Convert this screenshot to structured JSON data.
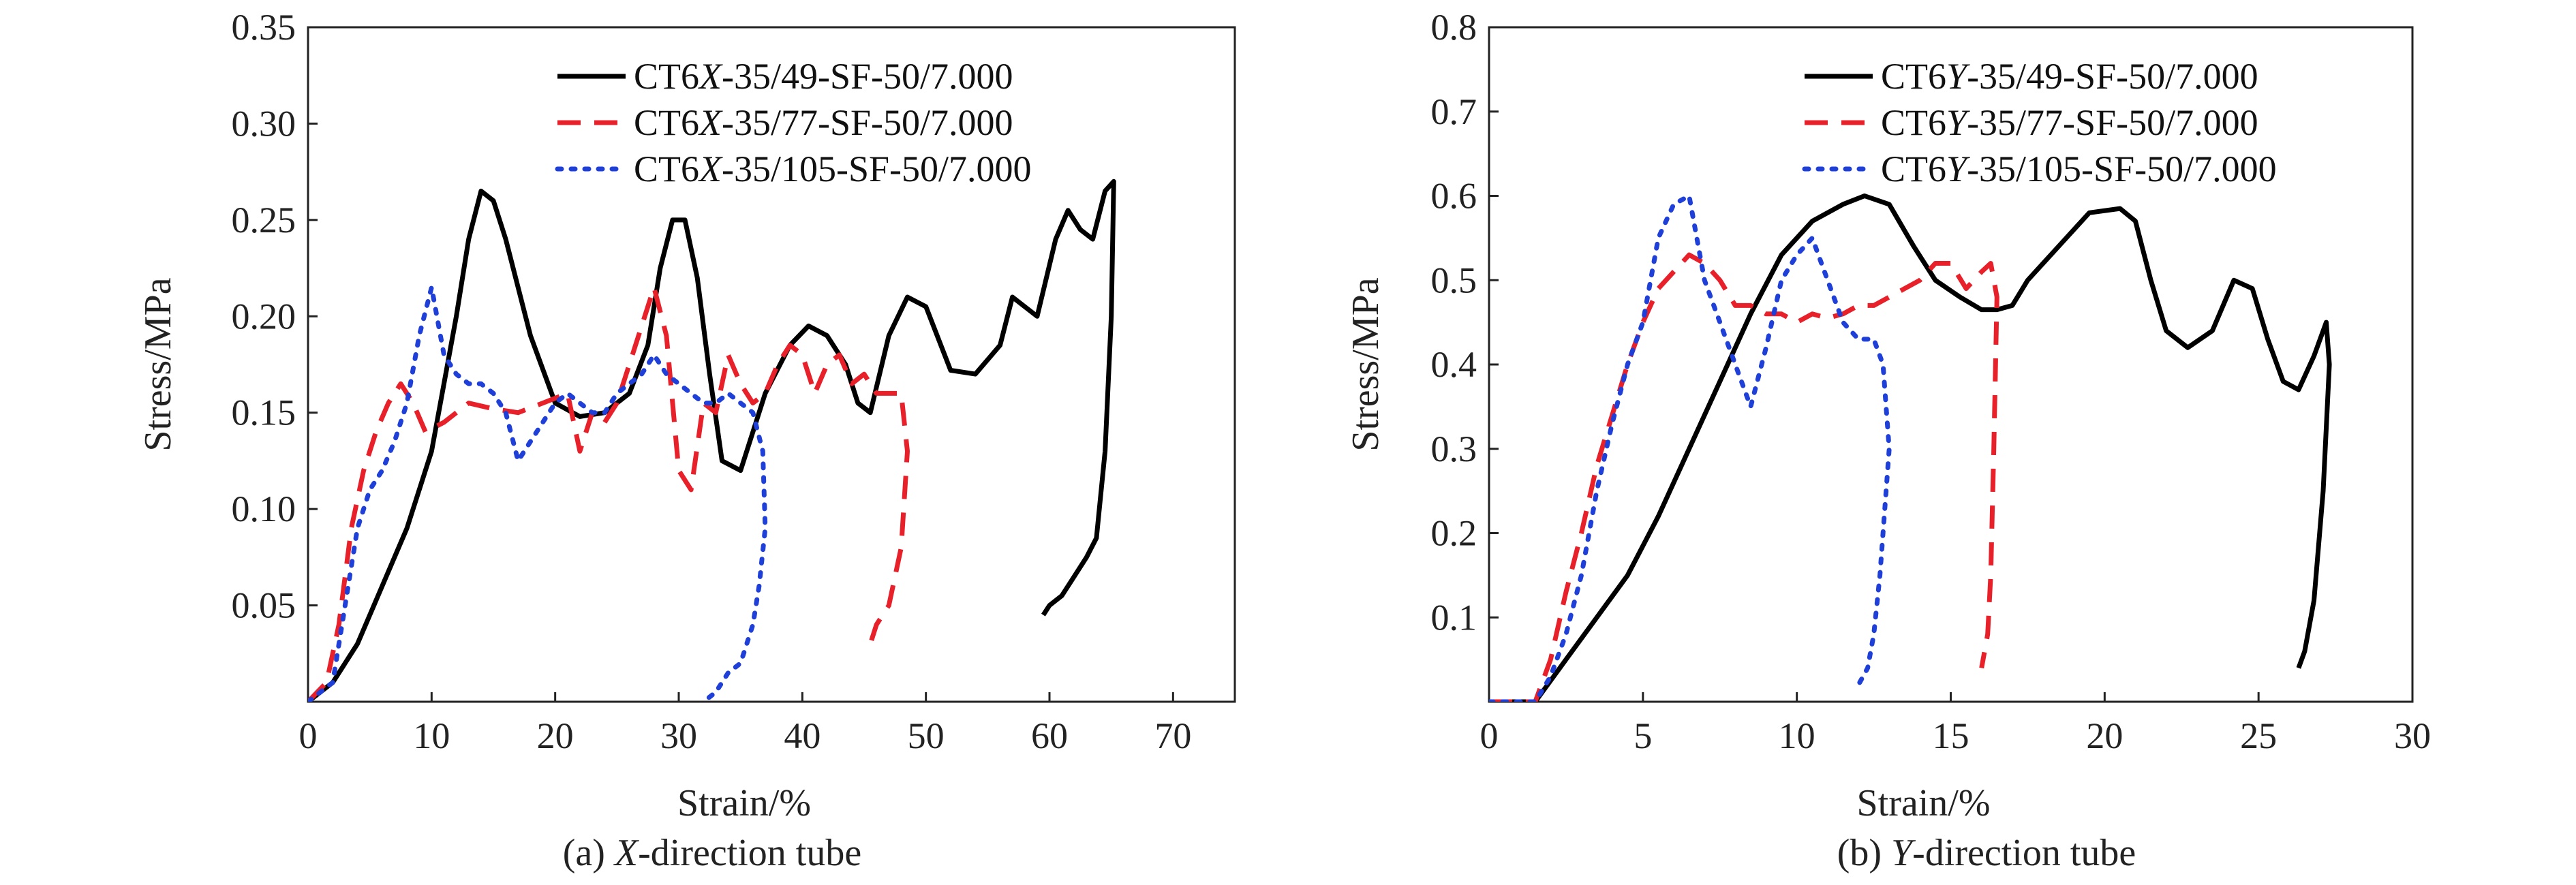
{
  "chart_data": [
    {
      "type": "line",
      "caption_prefix": "(a) ",
      "caption_italic": "X",
      "caption_suffix": "-direction tube",
      "xlabel": "Strain/%",
      "ylabel": "Stress/MPa",
      "xlim": [
        0,
        75
      ],
      "ylim": [
        0,
        0.35
      ],
      "xticks": [
        "0",
        "10",
        "20",
        "30",
        "40",
        "50",
        "60",
        "70"
      ],
      "yticks": [
        "0.05",
        "0.10",
        "0.15",
        "0.20",
        "0.25",
        "0.30",
        "0.35"
      ],
      "legend_position": "top-right",
      "series": [
        {
          "name": "CT6X-35/49-SF-50/7.000",
          "legend_prefix": "CT6",
          "legend_italic": "X",
          "legend_suffix": "-35/49-SF-50/7.000",
          "color": "#000000",
          "style": "solid",
          "x": [
            0,
            2,
            4,
            6,
            8,
            10,
            12,
            13,
            14,
            15,
            16,
            18,
            20,
            22,
            24,
            26,
            27.5,
            28.5,
            29.5,
            30.5,
            31.5,
            32.5,
            33.5,
            35,
            37,
            39,
            40.5,
            42,
            43.5,
            44.5,
            45.5,
            47,
            48.5,
            50,
            52,
            54,
            56,
            57,
            58,
            59,
            60.5,
            61.5,
            62.5,
            63.5,
            64.5,
            65.2,
            65,
            64.5,
            63.8,
            63,
            62,
            61,
            60,
            59.5
          ],
          "y": [
            0,
            0.01,
            0.03,
            0.06,
            0.09,
            0.13,
            0.2,
            0.24,
            0.265,
            0.26,
            0.24,
            0.19,
            0.155,
            0.148,
            0.15,
            0.16,
            0.185,
            0.225,
            0.25,
            0.25,
            0.22,
            0.17,
            0.125,
            0.12,
            0.16,
            0.185,
            0.195,
            0.19,
            0.175,
            0.155,
            0.15,
            0.19,
            0.21,
            0.205,
            0.172,
            0.17,
            0.185,
            0.21,
            0.205,
            0.2,
            0.24,
            0.255,
            0.245,
            0.24,
            0.265,
            0.27,
            0.2,
            0.13,
            0.085,
            0.075,
            0.065,
            0.055,
            0.05,
            0.045
          ]
        },
        {
          "name": "CT6X-35/77-SF-50/7.000",
          "legend_prefix": "CT6",
          "legend_italic": "X",
          "legend_suffix": "-35/77-SF-50/7.000",
          "color": "#e8202a",
          "style": "dashed",
          "x": [
            0,
            1.5,
            2.5,
            3.5,
            4.5,
            5.5,
            6.5,
            7.5,
            8.5,
            9.5,
            11,
            13,
            15,
            17,
            19,
            21,
            22,
            23,
            24,
            25,
            26,
            27,
            28,
            29,
            30,
            31,
            32,
            33,
            34,
            35,
            36,
            37,
            38,
            39,
            40,
            41,
            42,
            43,
            44,
            45,
            46,
            47,
            48,
            48.5,
            48,
            47,
            46,
            45.5
          ],
          "y": [
            0,
            0.01,
            0.04,
            0.09,
            0.12,
            0.14,
            0.155,
            0.165,
            0.155,
            0.14,
            0.145,
            0.155,
            0.152,
            0.15,
            0.155,
            0.16,
            0.13,
            0.15,
            0.145,
            0.155,
            0.175,
            0.195,
            0.215,
            0.19,
            0.12,
            0.11,
            0.155,
            0.15,
            0.18,
            0.165,
            0.155,
            0.16,
            0.175,
            0.185,
            0.18,
            0.16,
            0.175,
            0.18,
            0.165,
            0.17,
            0.16,
            0.16,
            0.16,
            0.13,
            0.08,
            0.05,
            0.04,
            0.03
          ]
        },
        {
          "name": "CT6X-35/105-SF-50/7.000",
          "legend_prefix": "CT6",
          "legend_italic": "X",
          "legend_suffix": "-35/105-SF-50/7.000",
          "color": "#1f3fd9",
          "style": "dotted",
          "x": [
            0,
            2,
            3,
            4,
            5,
            6,
            7,
            8,
            9,
            10,
            11,
            12,
            13,
            14,
            15,
            16,
            17,
            18,
            19,
            20,
            21,
            22,
            23,
            24,
            25,
            26,
            27,
            28,
            29,
            30,
            31,
            32,
            33,
            34,
            35,
            36,
            36.8,
            37,
            36.5,
            36,
            35,
            34,
            33,
            32
          ],
          "y": [
            0,
            0.01,
            0.05,
            0.09,
            0.11,
            0.12,
            0.135,
            0.155,
            0.19,
            0.215,
            0.18,
            0.17,
            0.165,
            0.165,
            0.16,
            0.15,
            0.125,
            0.135,
            0.145,
            0.155,
            0.16,
            0.155,
            0.15,
            0.15,
            0.16,
            0.165,
            0.17,
            0.18,
            0.17,
            0.165,
            0.16,
            0.155,
            0.155,
            0.16,
            0.155,
            0.15,
            0.13,
            0.09,
            0.06,
            0.04,
            0.02,
            0.015,
            0.005,
            0
          ]
        }
      ]
    },
    {
      "type": "line",
      "caption_prefix": "(b) ",
      "caption_italic": "Y",
      "caption_suffix": "-direction tube",
      "xlabel": "Strain/%",
      "ylabel": "Stress/MPa",
      "xlim": [
        0,
        30
      ],
      "ylim": [
        0,
        0.8
      ],
      "xticks": [
        "0",
        "5",
        "10",
        "15",
        "20",
        "25",
        "30"
      ],
      "yticks": [
        "0.1",
        "0.2",
        "0.3",
        "0.4",
        "0.5",
        "0.6",
        "0.7",
        "0.8"
      ],
      "legend_position": "top-right",
      "series": [
        {
          "name": "CT6Y-35/49-SF-50/7.000",
          "legend_prefix": "CT6",
          "legend_italic": "Y",
          "legend_suffix": "-35/49-SF-50/7.000",
          "color": "#000000",
          "style": "solid",
          "x": [
            0,
            1.5,
            2.5,
            3.5,
            4.5,
            5.5,
            6.5,
            7.5,
            8.5,
            9.5,
            10.5,
            11.5,
            12.2,
            13,
            13.8,
            14.5,
            15.3,
            16,
            16.5,
            17,
            17.5,
            18.5,
            19.5,
            20.5,
            21,
            21.5,
            22,
            22.7,
            23.5,
            24.2,
            24.8,
            25.3,
            25.8,
            26.3,
            26.8,
            27.2,
            27.3,
            27.1,
            26.8,
            26.5,
            26.3
          ],
          "y": [
            0,
            0,
            0.05,
            0.1,
            0.15,
            0.22,
            0.3,
            0.38,
            0.46,
            0.53,
            0.57,
            0.59,
            0.6,
            0.59,
            0.54,
            0.5,
            0.48,
            0.465,
            0.465,
            0.47,
            0.5,
            0.54,
            0.58,
            0.585,
            0.57,
            0.5,
            0.44,
            0.42,
            0.44,
            0.5,
            0.49,
            0.43,
            0.38,
            0.37,
            0.41,
            0.45,
            0.4,
            0.25,
            0.12,
            0.06,
            0.04
          ]
        },
        {
          "name": "CT6Y-35/77-SF-50/7.000",
          "legend_prefix": "CT6",
          "legend_italic": "Y",
          "legend_suffix": "-35/77-SF-50/7.000",
          "color": "#e8202a",
          "style": "dashed",
          "x": [
            0,
            1.5,
            2,
            2.5,
            3,
            3.5,
            4,
            4.5,
            5,
            5.5,
            6,
            6.5,
            7,
            7.5,
            8,
            8.5,
            9,
            9.5,
            10,
            10.5,
            11,
            11.5,
            12,
            12.5,
            13,
            13.5,
            14,
            14.5,
            15,
            15.5,
            16,
            16.3,
            16.5,
            16.4,
            16.3,
            16.2,
            16
          ],
          "y": [
            0,
            0,
            0.05,
            0.13,
            0.2,
            0.28,
            0.34,
            0.4,
            0.45,
            0.49,
            0.51,
            0.53,
            0.52,
            0.5,
            0.47,
            0.47,
            0.46,
            0.46,
            0.45,
            0.46,
            0.455,
            0.46,
            0.47,
            0.47,
            0.48,
            0.49,
            0.5,
            0.52,
            0.52,
            0.49,
            0.51,
            0.52,
            0.48,
            0.3,
            0.15,
            0.08,
            0.04
          ]
        },
        {
          "name": "CT6Y-35/105-SF-50/7.000",
          "legend_prefix": "CT6",
          "legend_italic": "Y",
          "legend_suffix": "-35/105-SF-50/7.000",
          "color": "#1f3fd9",
          "style": "dotted",
          "x": [
            0,
            1.5,
            2,
            2.5,
            3,
            3.5,
            4,
            4.5,
            5,
            5.5,
            6,
            6.5,
            7,
            7.5,
            8,
            8.5,
            9,
            9.5,
            10,
            10.5,
            11,
            11.5,
            12,
            12.5,
            12.8,
            13,
            12.7,
            12.5,
            12.3,
            12
          ],
          "y": [
            0,
            0,
            0.03,
            0.08,
            0.15,
            0.25,
            0.33,
            0.4,
            0.45,
            0.55,
            0.59,
            0.6,
            0.5,
            0.45,
            0.4,
            0.35,
            0.42,
            0.5,
            0.53,
            0.55,
            0.5,
            0.45,
            0.43,
            0.43,
            0.4,
            0.3,
            0.15,
            0.08,
            0.04,
            0.02
          ]
        }
      ]
    }
  ]
}
